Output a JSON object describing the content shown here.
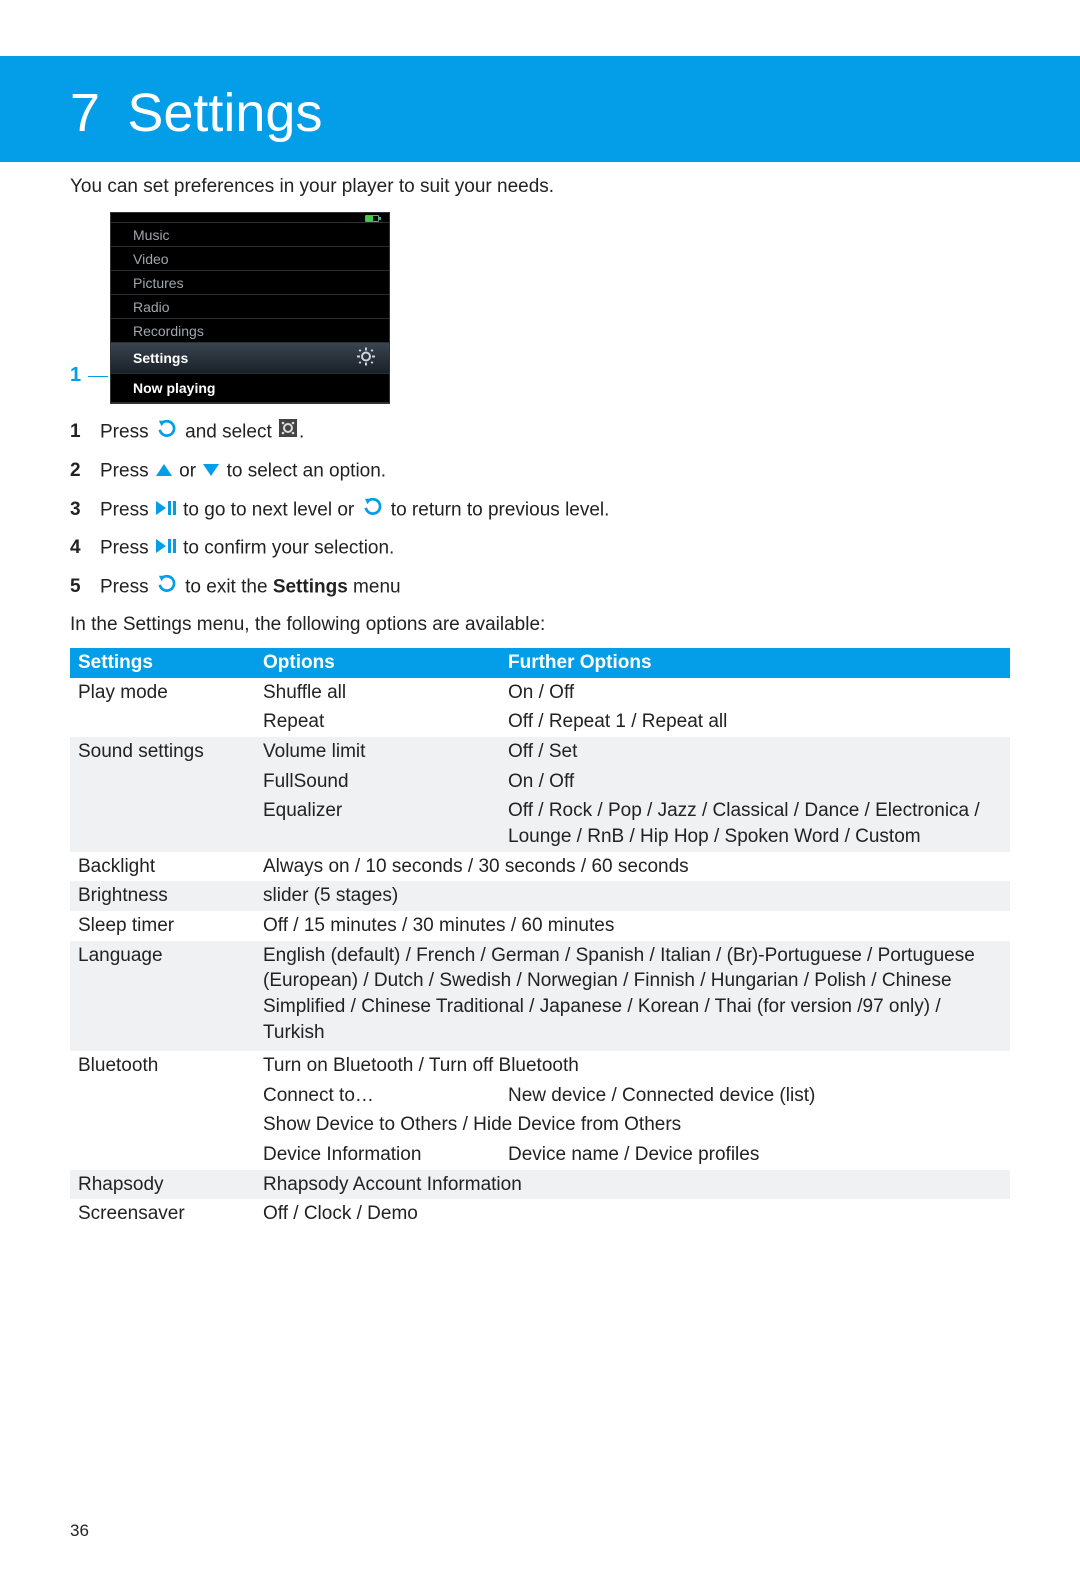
{
  "colors": {
    "accent": "#049ee8",
    "text": "#222222",
    "table_alt_row": "#f0f1f2",
    "device_bg": "#000000",
    "device_text_dim": "#9fa6ae"
  },
  "page_number": "36",
  "banner": {
    "number": "7",
    "title": "Settings"
  },
  "intro": "You can set preferences in your player to suit your needs.",
  "device_menu": {
    "callout_label": "1",
    "items": [
      "Music",
      "Video",
      "Pictures",
      "Radio",
      "Recordings",
      "Settings",
      "Now playing"
    ],
    "selected_index": 5
  },
  "steps": [
    {
      "n": "1",
      "pre": "Press ",
      "icon1": "back",
      "mid": " and select ",
      "icon2": "gearbox",
      "post": "."
    },
    {
      "n": "2",
      "pre": "Press ",
      "icon1": "up",
      "mid": " or ",
      "icon2": "down",
      "post": " to select an option."
    },
    {
      "n": "3",
      "pre": "Press ",
      "icon1": "playpause",
      "mid": " to go to next level or ",
      "icon2": "back",
      "post": " to return to previous level."
    },
    {
      "n": "4",
      "pre": "Press ",
      "icon1": "playpause",
      "mid": " to confirm your selection.",
      "icon2": null,
      "post": ""
    },
    {
      "n": "5",
      "pre": "Press ",
      "icon1": "back",
      "mid": " to exit the ",
      "bold": "Settings",
      "post": " menu"
    }
  ],
  "after_steps": "In the Settings menu, the following options are available:",
  "table": {
    "headers": [
      "Settings",
      "Options",
      "Further Options"
    ],
    "rows": [
      {
        "alt": false,
        "cells": [
          "Play mode",
          "Shuffle all",
          "On / Off"
        ]
      },
      {
        "alt": false,
        "cells": [
          "",
          "Repeat",
          "Off / Repeat 1 / Repeat all"
        ]
      },
      {
        "alt": true,
        "cells": [
          "Sound settings",
          "Volume limit",
          "Off / Set"
        ]
      },
      {
        "alt": true,
        "cells": [
          "",
          "FullSound",
          "On / Off"
        ]
      },
      {
        "alt": true,
        "cells": [
          "",
          "Equalizer",
          "Off / Rock / Pop / Jazz / Classical / Dance / Electronica / Lounge / RnB / Hip Hop / Spoken Word / Custom"
        ]
      },
      {
        "alt": false,
        "cells": [
          "Backlight"
        ],
        "span": "Always on / 10 seconds / 30 seconds / 60 seconds"
      },
      {
        "alt": true,
        "cells": [
          "Brightness"
        ],
        "span": "slider (5 stages)"
      },
      {
        "alt": false,
        "cells": [
          "Sleep timer"
        ],
        "span": "Off / 15 minutes / 30 minutes / 60 minutes"
      },
      {
        "alt": true,
        "cells": [
          "Language"
        ],
        "span": "English (default) / French / German / Spanish / Italian / (Br)-Portuguese / Portuguese (European) / Dutch / Swedish / Norwegian / Finnish / Hungarian / Polish / Chinese Simplified / Chinese Traditional / Japanese / Korean / Thai (for version /97 only) / Turkish"
      },
      {
        "alt": true,
        "cells": [
          "",
          "",
          ""
        ]
      },
      {
        "alt": false,
        "cells": [
          "Bluetooth"
        ],
        "span": "Turn on Bluetooth / Turn off Bluetooth"
      },
      {
        "alt": false,
        "cells": [
          "",
          "Connect to…",
          "New device / Connected device (list)"
        ]
      },
      {
        "alt": false,
        "cells": [
          ""
        ],
        "span": "Show Device to Others / Hide Device from Others"
      },
      {
        "alt": false,
        "cells": [
          "",
          "Device Information",
          "Device name / Device profiles"
        ]
      },
      {
        "alt": true,
        "cells": [
          "Rhapsody"
        ],
        "span": "Rhapsody Account Information"
      },
      {
        "alt": false,
        "cells": [
          "Screensaver"
        ],
        "span": "Off / Clock / Demo"
      }
    ]
  }
}
